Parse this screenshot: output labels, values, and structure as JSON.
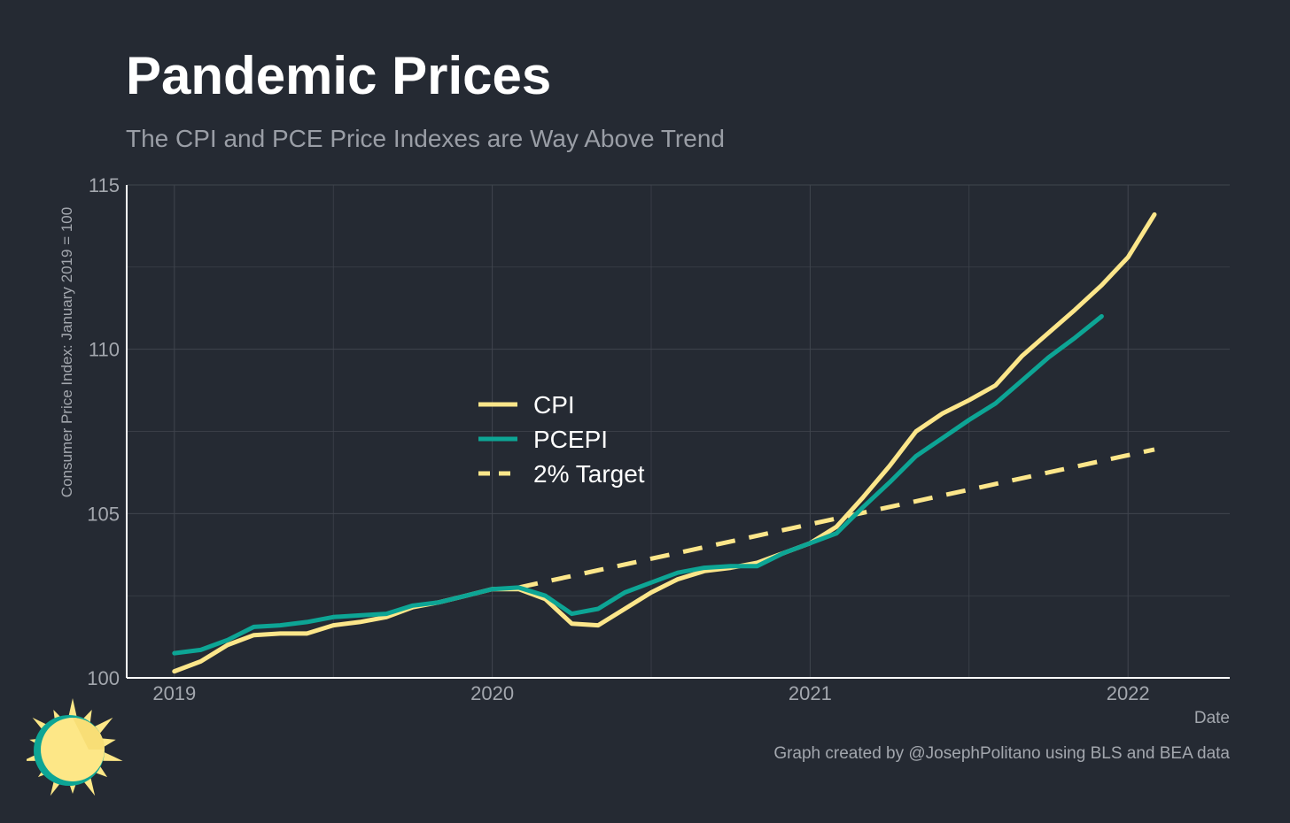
{
  "chart_data": {
    "type": "line",
    "title": "Pandemic Prices",
    "subtitle": "The CPI and PCE Price Indexes are Way Above Trend",
    "xlabel": "Date",
    "ylabel": "Consumer Price Index: January 2019 = 100",
    "xlim": [
      2018.85,
      2022.32
    ],
    "ylim": [
      100,
      115
    ],
    "x_ticks": [
      2019,
      2020,
      2021,
      2022
    ],
    "y_ticks": [
      100,
      105,
      110,
      115
    ],
    "grid": true,
    "legend_position": "center-left",
    "series": [
      {
        "name": "CPI",
        "color": "#fce68a",
        "dash": false,
        "x": [
          2019.0,
          2019.083,
          2019.167,
          2019.25,
          2019.333,
          2019.417,
          2019.5,
          2019.583,
          2019.667,
          2019.75,
          2019.833,
          2019.917,
          2020.0,
          2020.083,
          2020.167,
          2020.25,
          2020.333,
          2020.417,
          2020.5,
          2020.583,
          2020.667,
          2020.75,
          2020.833,
          2020.917,
          2021.0,
          2021.083,
          2021.167,
          2021.25,
          2021.333,
          2021.417,
          2021.5,
          2021.583,
          2021.667,
          2021.75,
          2021.833,
          2021.917,
          2022.0,
          2022.083,
          2022.167
        ],
        "y": [
          100.2,
          100.5,
          101.0,
          101.3,
          101.35,
          101.35,
          101.6,
          101.7,
          101.85,
          102.15,
          102.3,
          102.5,
          102.7,
          102.7,
          102.4,
          101.65,
          101.6,
          102.1,
          102.6,
          103.0,
          103.25,
          103.35,
          103.5,
          103.8,
          104.1,
          104.6,
          105.5,
          106.45,
          107.5,
          108.05,
          108.45,
          108.9,
          109.8,
          110.5,
          111.2,
          111.95,
          112.8,
          114.1,
          null
        ]
      },
      {
        "name": "PCEPI",
        "color": "#0da595",
        "dash": false,
        "x": [
          2019.0,
          2019.083,
          2019.167,
          2019.25,
          2019.333,
          2019.417,
          2019.5,
          2019.583,
          2019.667,
          2019.75,
          2019.833,
          2019.917,
          2020.0,
          2020.083,
          2020.167,
          2020.25,
          2020.333,
          2020.417,
          2020.5,
          2020.583,
          2020.667,
          2020.75,
          2020.833,
          2020.917,
          2021.0,
          2021.083,
          2021.167,
          2021.25,
          2021.333,
          2021.417,
          2021.5,
          2021.583,
          2021.667,
          2021.75,
          2021.833,
          2021.917,
          2022.0,
          2022.083
        ],
        "y": [
          100.75,
          100.85,
          101.15,
          101.55,
          101.6,
          101.7,
          101.85,
          101.9,
          101.95,
          102.2,
          102.3,
          102.5,
          102.7,
          102.75,
          102.5,
          101.95,
          102.1,
          102.6,
          102.9,
          103.2,
          103.35,
          103.4,
          103.4,
          103.8,
          104.1,
          104.4,
          105.2,
          105.95,
          106.75,
          107.3,
          107.85,
          108.35,
          109.05,
          109.75,
          110.35,
          111.0,
          null,
          null
        ]
      },
      {
        "name": "2% Target",
        "color": "#fce68a",
        "dash": true,
        "x": [
          2020.083,
          2022.083
        ],
        "y": [
          102.75,
          106.95
        ]
      }
    ]
  },
  "caption": "Graph created by @JosephPolitano using BLS and BEA data",
  "colors": {
    "background": "#252a33",
    "grid": "#40454e",
    "axis": "#ffffff",
    "tick_text": "#a3a7ae",
    "legend_text": "#ffffff",
    "logo_sun": "#fde787",
    "logo_ring": "#0da595"
  },
  "logo": {
    "icon": "sun-icon"
  }
}
